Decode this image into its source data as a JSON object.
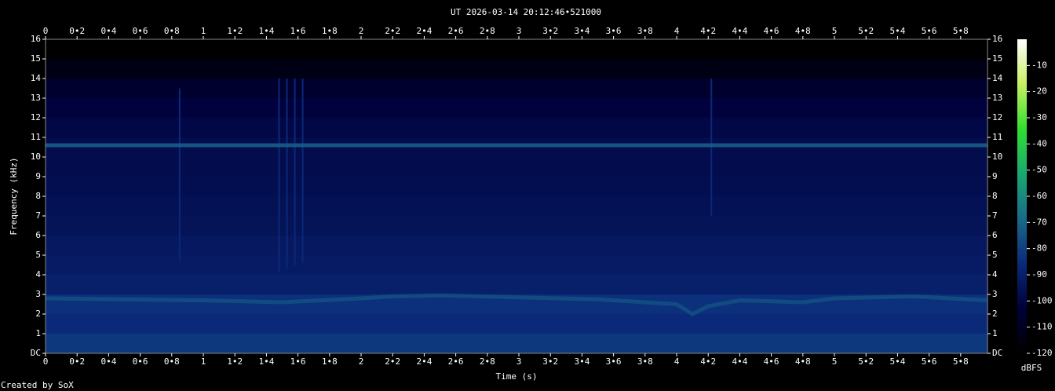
{
  "chart_data": {
    "type": "spectrogram",
    "title": "UT 2026-03-14 20:12:46•521000",
    "xlabel": "Time (s)",
    "ylabel": "Frequency (kHz)",
    "colorbar_label": "dBFS",
    "credit": "Created by SoX",
    "xlim": [
      0,
      5.97
    ],
    "ylim": [
      0,
      16
    ],
    "xticks": [
      0,
      {
        "value": 0.2,
        "label": "0•2"
      },
      {
        "value": 0.4,
        "label": "0•4"
      },
      {
        "value": 0.6,
        "label": "0•6"
      },
      {
        "value": 0.8,
        "label": "0•8"
      },
      1,
      {
        "value": 1.2,
        "label": "1•2"
      },
      {
        "value": 1.4,
        "label": "1•4"
      },
      {
        "value": 1.6,
        "label": "1•6"
      },
      {
        "value": 1.8,
        "label": "1•8"
      },
      2,
      {
        "value": 2.2,
        "label": "2•2"
      },
      {
        "value": 2.4,
        "label": "2•4"
      },
      {
        "value": 2.6,
        "label": "2•6"
      },
      {
        "value": 2.8,
        "label": "2•8"
      },
      3,
      {
        "value": 3.2,
        "label": "3•2"
      },
      {
        "value": 3.4,
        "label": "3•4"
      },
      {
        "value": 3.6,
        "label": "3•6"
      },
      {
        "value": 3.8,
        "label": "3•8"
      },
      4,
      {
        "value": 4.2,
        "label": "4•2"
      },
      {
        "value": 4.4,
        "label": "4•4"
      },
      {
        "value": 4.6,
        "label": "4•6"
      },
      {
        "value": 4.8,
        "label": "4•8"
      },
      5,
      {
        "value": 5.2,
        "label": "5•2"
      },
      {
        "value": 5.4,
        "label": "5•4"
      },
      {
        "value": 5.6,
        "label": "5•6"
      },
      {
        "value": 5.8,
        "label": "5•8"
      }
    ],
    "yticks": [
      {
        "value": 0,
        "label": "DC"
      },
      1,
      2,
      3,
      4,
      5,
      6,
      7,
      8,
      9,
      10,
      11,
      12,
      13,
      14,
      15,
      16
    ],
    "clim": [
      -120,
      0
    ],
    "cticks": [
      -10,
      -20,
      -30,
      -40,
      -50,
      -60,
      -70,
      -80,
      -90,
      -100,
      -110,
      -120
    ],
    "colormap": [
      "#000000",
      "#00003a",
      "#0a2a7a",
      "#1a6a8a",
      "#1aa870",
      "#30e030",
      "#c8f060",
      "#ffffff"
    ],
    "freq_bins": [
      0,
      1,
      2,
      3,
      4,
      5,
      6,
      7,
      8,
      9,
      10,
      11,
      12,
      13,
      14,
      15,
      16
    ],
    "levels": [
      -82,
      -86,
      -84,
      -90,
      -92,
      -93,
      -95,
      -96,
      -97,
      -98,
      -98,
      -100,
      -102,
      -106,
      -114,
      -120
    ],
    "series": [
      {
        "level": -72,
        "x": [
          0,
          5.97
        ],
        "values": [
          10.6,
          10.6
        ]
      },
      {
        "level": -76,
        "x": [
          0,
          0.5,
          1,
          1.5,
          2,
          2.2,
          2.5,
          3,
          3.5,
          4,
          4.1,
          4.2,
          4.4,
          4.8,
          5,
          5.5,
          5.97
        ],
        "values": [
          2.8,
          2.75,
          2.7,
          2.6,
          2.8,
          2.9,
          2.95,
          2.85,
          2.75,
          2.5,
          2.0,
          2.4,
          2.7,
          2.6,
          2.8,
          2.9,
          2.7
        ]
      }
    ],
    "transients": {
      "level": -86,
      "x": [
        0.85,
        1.48,
        1.53,
        1.58,
        1.63,
        4.22
      ],
      "low": [
        4.7,
        4.1,
        4.3,
        4.5,
        4.6,
        7.0
      ],
      "high": [
        13.5,
        14.0,
        14.0,
        14.0,
        14.0,
        14.0
      ]
    }
  }
}
